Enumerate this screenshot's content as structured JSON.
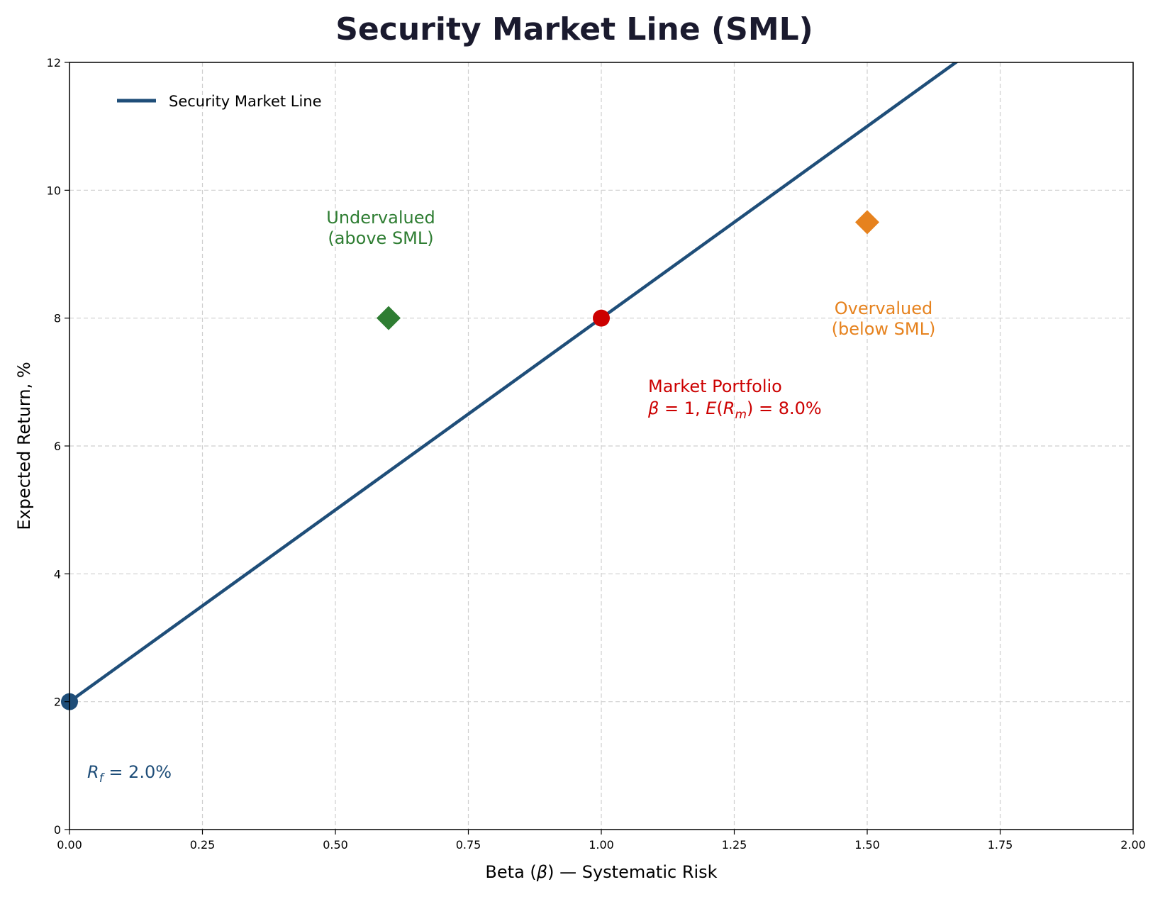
{
  "chart_data": {
    "type": "line",
    "title": "Security Market Line (SML)",
    "xlabel": "Beta (β) — Systematic Risk",
    "ylabel": "Expected Return, %",
    "xlim": [
      0,
      2
    ],
    "ylim": [
      0,
      12
    ],
    "xticks": [
      0,
      0.25,
      0.5,
      0.75,
      1.0,
      1.25,
      1.5,
      1.75,
      2.0
    ],
    "xtick_labels": [
      "0.00",
      "0.25",
      "0.50",
      "0.75",
      "1.00",
      "1.25",
      "1.50",
      "1.75",
      "2.00"
    ],
    "yticks": [
      0,
      2,
      4,
      6,
      8,
      10,
      12
    ],
    "ytick_labels": [
      "0",
      "2",
      "4",
      "6",
      "8",
      "10",
      "12"
    ],
    "grid": true,
    "legend": {
      "placement": "top-left",
      "entries": [
        "Security Market Line"
      ]
    },
    "series": [
      {
        "name": "Security Market Line",
        "x": [
          0,
          2
        ],
        "y": [
          2,
          14
        ],
        "color": "#1f4e79"
      }
    ],
    "points": [
      {
        "id": "risk-free",
        "x": 0,
        "y": 2,
        "marker": "circle",
        "color": "#1f4e79"
      },
      {
        "id": "market-portfolio",
        "x": 1.0,
        "y": 8,
        "marker": "circle",
        "color": "#cc0000"
      },
      {
        "id": "undervalued-asset",
        "x": 0.6,
        "y": 8,
        "marker": "diamond",
        "color": "#2e7d32"
      },
      {
        "id": "overvalued-asset",
        "x": 1.5,
        "y": 9.5,
        "marker": "diamond",
        "color": "#e6821e"
      }
    ],
    "annotations": {
      "undervalued": {
        "lines": [
          "Undervalued",
          "(above SML)"
        ],
        "color": "#2e7d32"
      },
      "overvalued": {
        "lines": [
          "Overvalued",
          "(below SML)"
        ],
        "color": "#e6821e"
      },
      "market": {
        "lines": [
          "Market Portfolio",
          "β = 1, E(R_m) = 8.0%"
        ],
        "color": "#cc0000"
      },
      "risk_free": {
        "lines": [
          "R_f = 2.0%"
        ],
        "color": "#1f4e79"
      }
    }
  }
}
